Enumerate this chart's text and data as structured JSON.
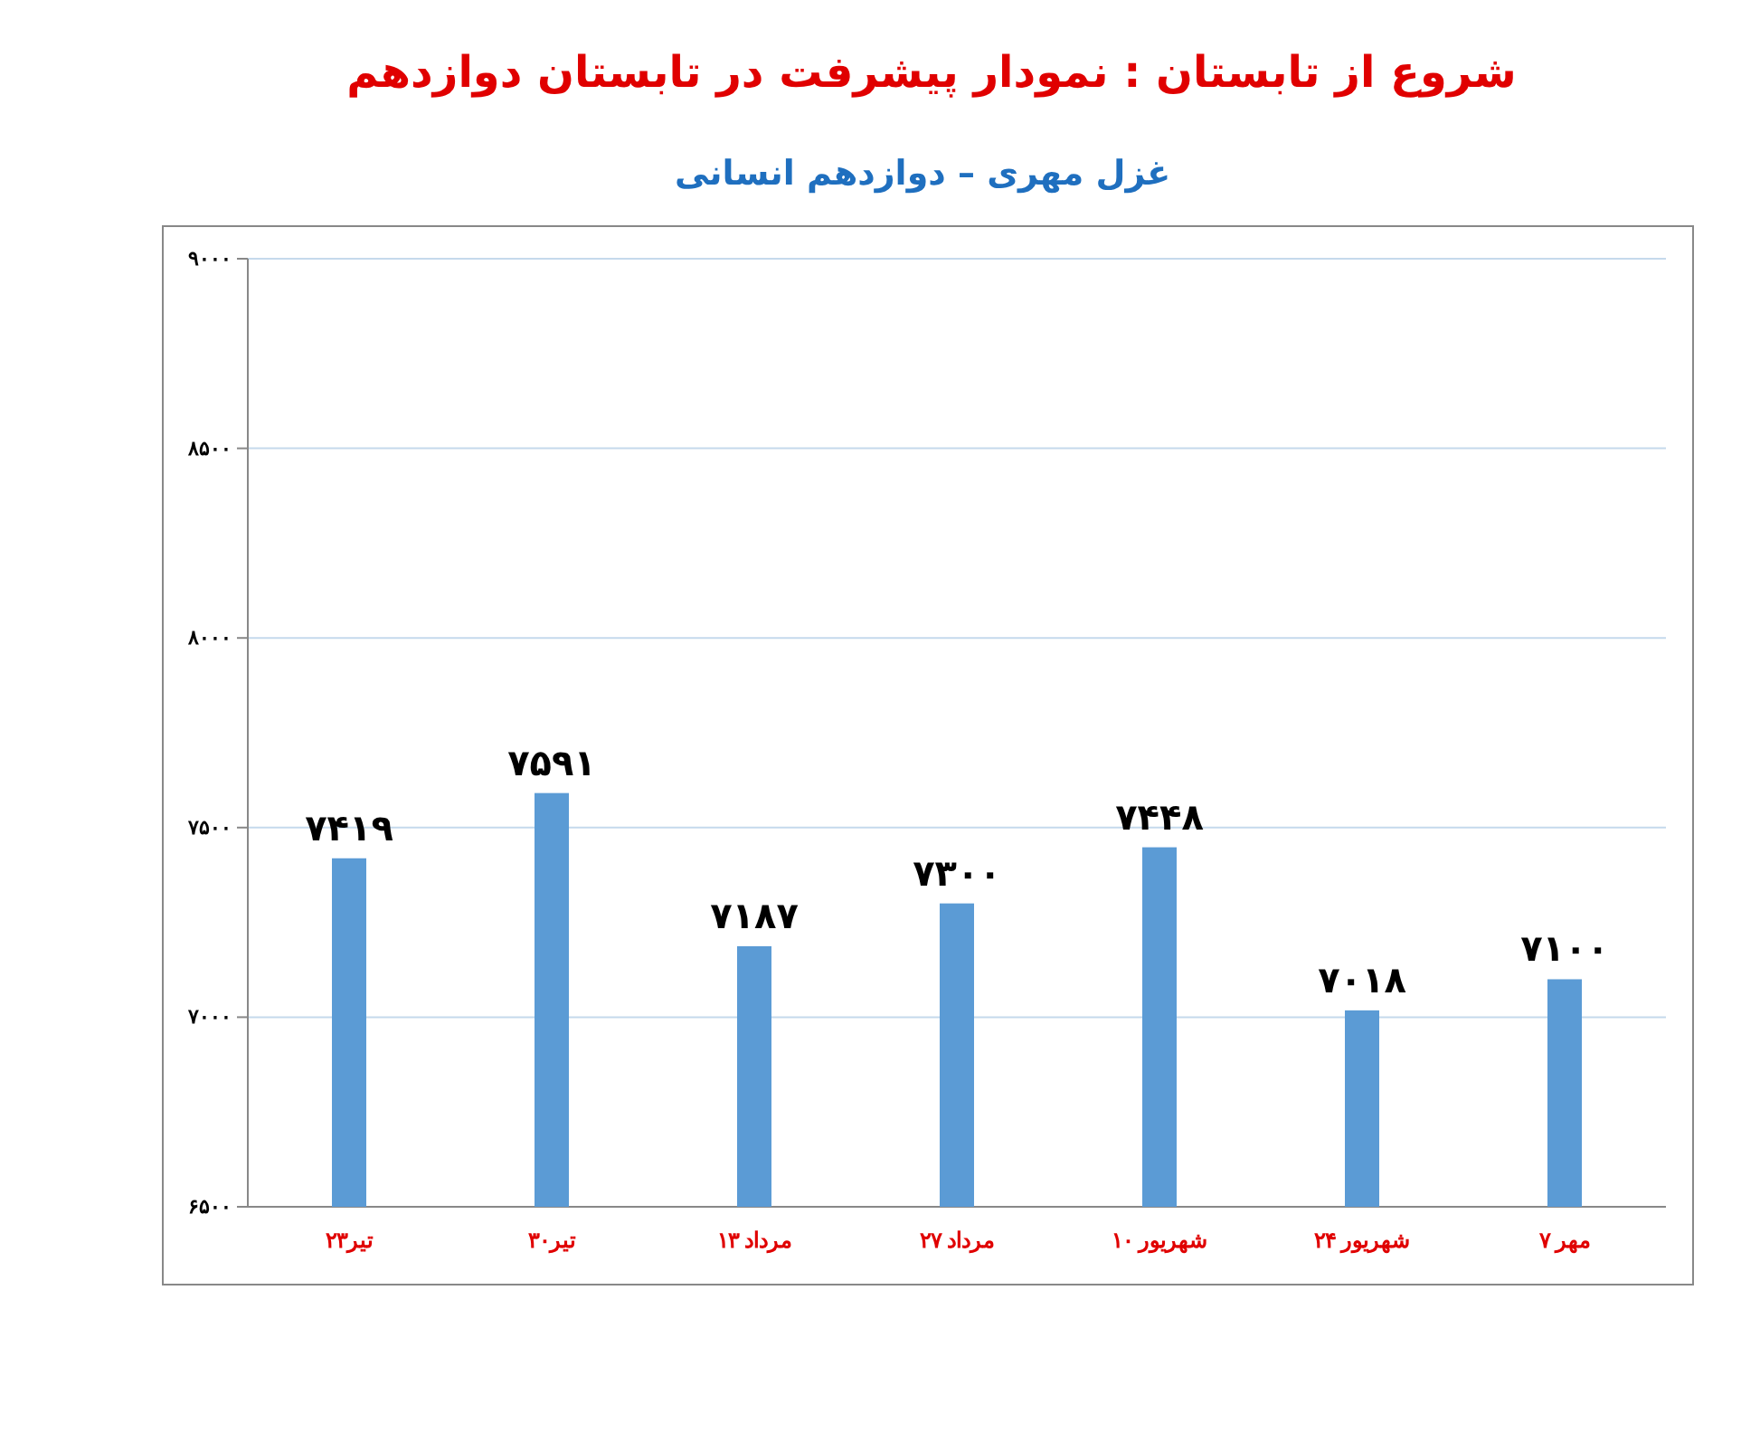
{
  "chart_data": {
    "type": "bar",
    "title": "شروع از تابستان : نمودار پیشرفت در تابستان دوازدهم",
    "subtitle": "غزل مهری – دوازدهم انسانی",
    "categories": [
      "۲۳تیر",
      "۳۰تیر",
      "۱۳ مرداد",
      "۲۷ مرداد",
      "۱۰ شهریور",
      "۲۴ شهریور",
      "۷ مهر"
    ],
    "values": [
      7419,
      7591,
      7187,
      7300,
      7448,
      7018,
      7100
    ],
    "value_labels": [
      "۷۴۱۹",
      "۷۵۹۱",
      "۷۱۸۷",
      "۷۳۰۰",
      "۷۴۴۸",
      "۷۰۱۸",
      "۷۱۰۰"
    ],
    "color": "#5b9bd5",
    "ylim": [
      6500,
      9000
    ],
    "yticks": [
      {
        "value": 6500,
        "label": "۶۵۰۰"
      },
      {
        "value": 7000,
        "label": "۷۰۰۰"
      },
      {
        "value": 7500,
        "label": "۷۵۰۰"
      },
      {
        "value": 8000,
        "label": "۸۰۰۰"
      },
      {
        "value": 8500,
        "label": "۸۵۰۰"
      },
      {
        "value": 9000,
        "label": "۹۰۰۰"
      }
    ],
    "grid": "y"
  }
}
